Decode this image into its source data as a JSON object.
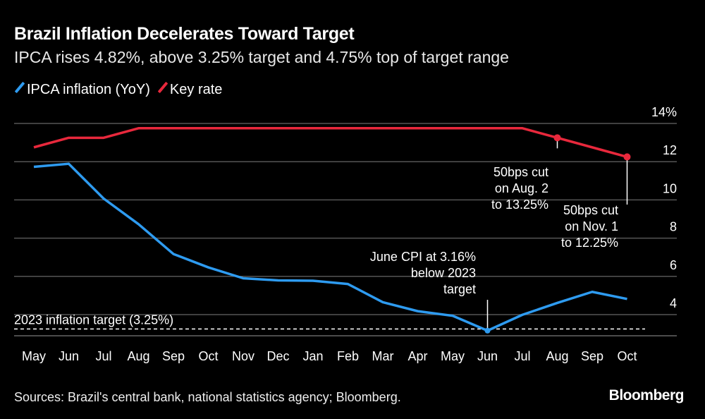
{
  "title": "Brazil Inflation Decelerates Toward Target",
  "subtitle": "IPCA rises 4.82%, above 3.25% target and 4.75% top of target range",
  "source": "Sources: Brazil's central bank, national statistics agency; Bloomberg.",
  "logo": "Bloomberg",
  "chart_data": {
    "type": "line",
    "categories": [
      "May",
      "Jun",
      "Jul",
      "Aug",
      "Sep",
      "Oct",
      "Nov",
      "Dec",
      "Jan",
      "Feb",
      "Mar",
      "Apr",
      "May",
      "Jun",
      "Jul",
      "Aug",
      "Sep",
      "Oct"
    ],
    "series": [
      {
        "name": "IPCA inflation (YoY)",
        "color": "#2e9bf0",
        "values": [
          11.73,
          11.89,
          10.07,
          8.73,
          7.17,
          6.47,
          5.9,
          5.79,
          5.77,
          5.6,
          4.65,
          4.18,
          3.94,
          3.16,
          3.99,
          4.61,
          5.19,
          4.82
        ]
      },
      {
        "name": "Key rate",
        "color": "#e8283c",
        "values": [
          12.75,
          13.25,
          13.25,
          13.75,
          13.75,
          13.75,
          13.75,
          13.75,
          13.75,
          13.75,
          13.75,
          13.75,
          13.75,
          13.75,
          13.75,
          13.25,
          12.75,
          12.25
        ]
      }
    ],
    "y_ticks": [
      "14%",
      "12",
      "10",
      "8",
      "6",
      "4"
    ],
    "y_tick_values": [
      14,
      12,
      10,
      8,
      6,
      4
    ],
    "ylim": [
      2.9,
      14
    ],
    "y_axis_side": "right",
    "grid": true,
    "legend_position": "top-left",
    "reference_line": {
      "value": 3.25,
      "label": "2023 inflation target (3.25%)",
      "style": "dashed"
    },
    "annotations": [
      {
        "text": [
          "50bps cut",
          "on Aug. 2",
          "to 13.25%"
        ],
        "series": 1,
        "index": 15
      },
      {
        "text": [
          "50bps cut",
          "on Nov. 1",
          "to 12.25%"
        ],
        "series": 1,
        "index": 17
      },
      {
        "text": [
          "June CPI at 3.16%",
          "below 2023",
          "target"
        ],
        "series": 0,
        "index": 13
      }
    ]
  }
}
